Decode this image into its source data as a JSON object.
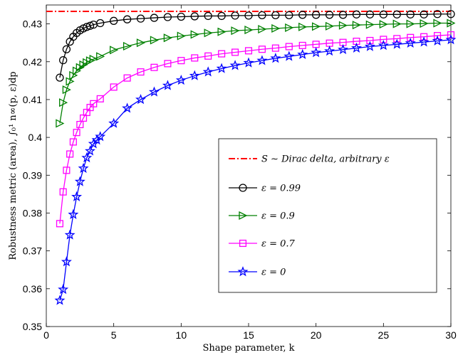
{
  "chart_data": {
    "type": "line",
    "title": "",
    "xlabel": "Shape parameter, k",
    "ylabel": "Robustness metric (area), ∫₀¹ n∞(p, ε)dp",
    "xlim": [
      0,
      30
    ],
    "ylim": [
      0.35,
      0.435
    ],
    "xticks": [
      0,
      5,
      10,
      15,
      20,
      25,
      30
    ],
    "yticks": [
      0.35,
      0.36,
      0.37,
      0.38,
      0.39,
      0.4,
      0.41,
      0.42,
      0.43
    ],
    "xtick_labels": [
      "0",
      "5",
      "10",
      "15",
      "20",
      "25",
      "30"
    ],
    "ytick_labels": [
      "0.35",
      "0.36",
      "0.37",
      "0.38",
      "0.39",
      "0.4",
      "0.41",
      "0.42",
      "0.43"
    ],
    "grid": false,
    "legend_position": "center-right",
    "reference_line": {
      "name": "S ∼ Dirac delta, arbitrary ε",
      "value": 0.4333,
      "color": "#ff0000",
      "style": "dash-dot"
    },
    "series": [
      {
        "name": "ε = 0.99",
        "color": "#000000",
        "marker": "circle",
        "x": [
          1,
          1.25,
          1.5,
          1.75,
          2,
          2.25,
          2.5,
          2.75,
          3,
          3.25,
          3.5,
          4,
          5,
          6,
          7,
          8,
          9,
          10,
          11,
          12,
          13,
          14,
          15,
          16,
          17,
          18,
          19,
          20,
          21,
          22,
          23,
          24,
          25,
          26,
          27,
          28,
          29,
          30
        ],
        "y": [
          0.4158,
          0.4204,
          0.4233,
          0.4253,
          0.4266,
          0.4276,
          0.4283,
          0.4288,
          0.4292,
          0.4295,
          0.4298,
          0.4302,
          0.4308,
          0.4312,
          0.4314,
          0.4316,
          0.4318,
          0.4319,
          0.432,
          0.4321,
          0.4321,
          0.4322,
          0.4322,
          0.4323,
          0.4323,
          0.4323,
          0.4324,
          0.4324,
          0.4324,
          0.4324,
          0.4325,
          0.4325,
          0.4325,
          0.4325,
          0.4325,
          0.4325,
          0.4326,
          0.4326
        ]
      },
      {
        "name": "ε = 0.9",
        "color": "#008000",
        "marker": "triangle-right",
        "x": [
          1,
          1.25,
          1.5,
          1.75,
          2,
          2.25,
          2.5,
          2.75,
          3,
          3.25,
          3.5,
          4,
          5,
          6,
          7,
          8,
          9,
          10,
          11,
          12,
          13,
          14,
          15,
          16,
          17,
          18,
          19,
          20,
          21,
          22,
          23,
          24,
          25,
          26,
          27,
          28,
          29,
          30
        ],
        "y": [
          0.4037,
          0.4092,
          0.4126,
          0.4148,
          0.4164,
          0.4176,
          0.4185,
          0.4192,
          0.4198,
          0.4203,
          0.4207,
          0.4214,
          0.4231,
          0.4241,
          0.425,
          0.4257,
          0.4263,
          0.4268,
          0.4272,
          0.4276,
          0.4279,
          0.4282,
          0.4284,
          0.4286,
          0.4288,
          0.429,
          0.4292,
          0.4293,
          0.4294,
          0.4296,
          0.4297,
          0.4298,
          0.4299,
          0.43,
          0.43,
          0.4301,
          0.4302,
          0.4302
        ]
      },
      {
        "name": "ε = 0.7",
        "color": "#ff00ff",
        "marker": "square",
        "x": [
          1,
          1.25,
          1.5,
          1.75,
          2,
          2.25,
          2.5,
          2.75,
          3,
          3.25,
          3.5,
          4,
          5,
          6,
          7,
          8,
          9,
          10,
          11,
          12,
          13,
          14,
          15,
          16,
          17,
          18,
          19,
          20,
          21,
          22,
          23,
          24,
          25,
          26,
          27,
          28,
          29,
          30
        ],
        "y": [
          0.3772,
          0.3856,
          0.3913,
          0.3956,
          0.3988,
          0.4013,
          0.4034,
          0.4051,
          0.4066,
          0.4079,
          0.4089,
          0.4102,
          0.4133,
          0.4157,
          0.4173,
          0.4185,
          0.4195,
          0.4203,
          0.421,
          0.4215,
          0.4221,
          0.4225,
          0.4229,
          0.4233,
          0.4236,
          0.424,
          0.4243,
          0.4246,
          0.4249,
          0.4251,
          0.4254,
          0.4256,
          0.4259,
          0.4261,
          0.4264,
          0.4266,
          0.4269,
          0.4271
        ]
      },
      {
        "name": "ε = 0",
        "color": "#0000ff",
        "marker": "star",
        "x": [
          1,
          1.25,
          1.5,
          1.75,
          2,
          2.25,
          2.5,
          2.75,
          3,
          3.25,
          3.5,
          3.75,
          4,
          5,
          6,
          7,
          8,
          9,
          10,
          11,
          12,
          13,
          14,
          15,
          16,
          17,
          18,
          19,
          20,
          21,
          22,
          23,
          24,
          25,
          26,
          27,
          28,
          29,
          30
        ],
        "y": [
          0.3569,
          0.3598,
          0.3671,
          0.3742,
          0.3796,
          0.3843,
          0.3883,
          0.3918,
          0.3946,
          0.3964,
          0.3983,
          0.3993,
          0.4002,
          0.4037,
          0.4077,
          0.41,
          0.412,
          0.4137,
          0.4151,
          0.4163,
          0.4173,
          0.4182,
          0.419,
          0.4197,
          0.4203,
          0.4209,
          0.4214,
          0.4219,
          0.4224,
          0.4228,
          0.4232,
          0.4236,
          0.424,
          0.4243,
          0.4246,
          0.4249,
          0.4252,
          0.4255,
          0.4258
        ]
      }
    ]
  }
}
